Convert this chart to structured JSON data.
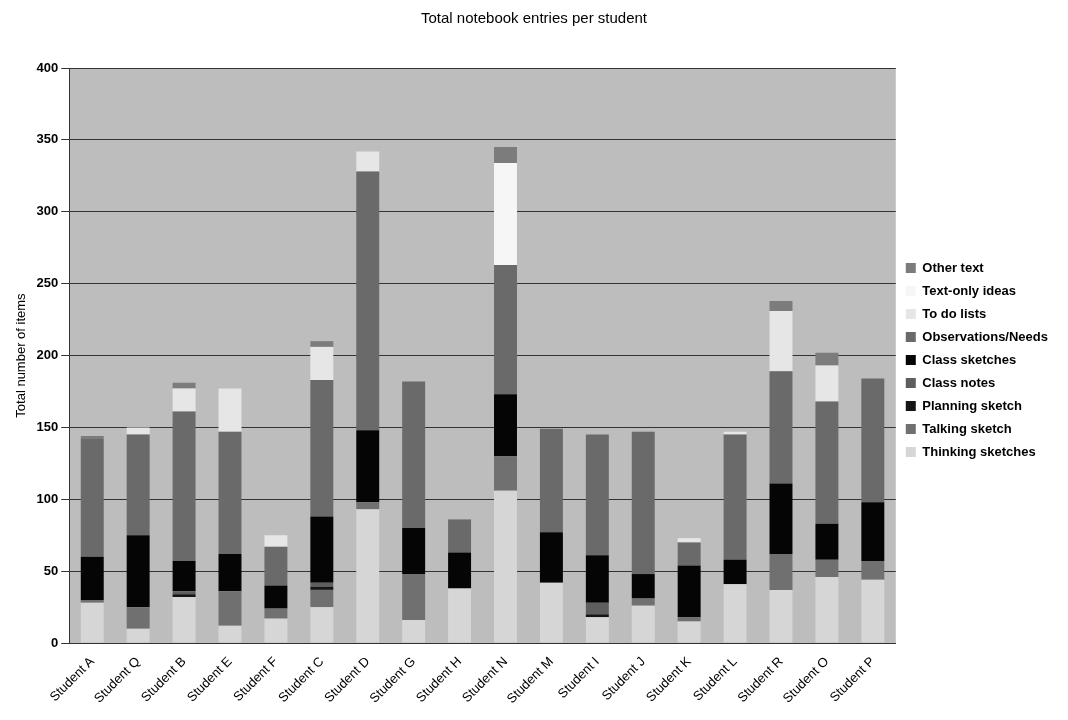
{
  "chart_data": {
    "type": "bar",
    "stacked": true,
    "title": "Total notebook entries per student",
    "ylabel": "Total number of items",
    "categories": [
      "Student A",
      "Student Q",
      "Student B",
      "Student E",
      "Student F",
      "Student C",
      "Student D",
      "Student G",
      "Student H",
      "Student N",
      "Student M",
      "Student I",
      "Student J",
      "Student K",
      "Student L",
      "Student R",
      "Student O",
      "Student P"
    ],
    "series": [
      {
        "name": "Thinking sketches",
        "color": "#d6d6d6",
        "values": [
          28,
          10,
          32,
          12,
          17,
          25,
          93,
          16,
          38,
          106,
          42,
          18,
          26,
          15,
          41,
          37,
          46,
          44
        ]
      },
      {
        "name": "Talking sketch",
        "color": "#707070",
        "values": [
          2,
          15,
          null,
          24,
          7,
          12,
          5,
          32,
          null,
          24,
          null,
          null,
          5,
          3,
          null,
          25,
          12,
          13
        ]
      },
      {
        "name": "Planning sketch",
        "color": "#151515",
        "values": [
          null,
          null,
          2,
          null,
          null,
          2,
          null,
          null,
          null,
          null,
          null,
          2,
          null,
          null,
          null,
          null,
          null,
          null
        ]
      },
      {
        "name": "Class notes",
        "color": "#5e5e5e",
        "values": [
          null,
          null,
          2,
          null,
          null,
          3,
          null,
          null,
          null,
          null,
          null,
          8,
          null,
          null,
          null,
          null,
          null,
          null
        ]
      },
      {
        "name": "Class sketches",
        "color": "#050505",
        "values": [
          30,
          50,
          21,
          26,
          16,
          46,
          50,
          32,
          25,
          43,
          35,
          33,
          17,
          36,
          17,
          49,
          25,
          41
        ]
      },
      {
        "name": "Observations/Needs",
        "color": "#6a6a6a",
        "values": [
          82,
          70,
          104,
          85,
          27,
          95,
          180,
          102,
          23,
          90,
          72,
          84,
          99,
          16,
          87,
          78,
          85,
          86
        ]
      },
      {
        "name": "To do lists",
        "color": "#e6e6e6",
        "values": [
          null,
          5,
          16,
          30,
          8,
          23,
          14,
          null,
          null,
          null,
          null,
          null,
          null,
          3,
          2,
          42,
          25,
          null
        ]
      },
      {
        "name": "Text-only ideas",
        "color": "#f6f6f6",
        "values": [
          null,
          null,
          null,
          null,
          null,
          null,
          null,
          null,
          null,
          71,
          null,
          null,
          null,
          null,
          null,
          null,
          null,
          null
        ]
      },
      {
        "name": "Other text",
        "color": "#7c7c7c",
        "values": [
          2,
          null,
          4,
          null,
          null,
          4,
          null,
          null,
          null,
          11,
          null,
          null,
          null,
          null,
          null,
          7,
          9,
          null
        ]
      }
    ],
    "ylim": [
      0,
      400
    ],
    "yticks": [
      0,
      50,
      100,
      150,
      200,
      250,
      300,
      350,
      400
    ],
    "grid": "y",
    "legend": "right"
  }
}
